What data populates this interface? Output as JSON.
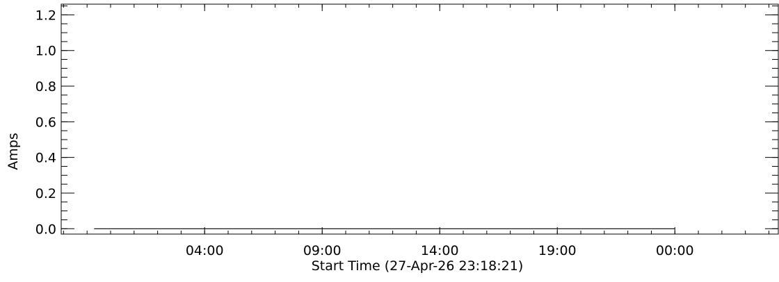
{
  "chart_data": {
    "type": "line",
    "title": "",
    "xlabel": "Start Time (27-Apr-26 23:18:21)",
    "ylabel": "Amps",
    "x_is_time": true,
    "x_ticks": [
      "04:00",
      "09:00",
      "14:00",
      "19:00",
      "00:00"
    ],
    "x_tick_hours_from_start": [
      4.7,
      9.7,
      14.7,
      19.7,
      24.7
    ],
    "xlim_hours_from_start": [
      -1.4,
      29.1
    ],
    "y_ticks": [
      "0.0",
      "0.2",
      "0.4",
      "0.6",
      "0.8",
      "1.0",
      "1.2"
    ],
    "y_tick_values": [
      0.0,
      0.2,
      0.4,
      0.6,
      0.8,
      1.0,
      1.2
    ],
    "ylim": [
      -0.03,
      1.26
    ],
    "grid": false,
    "series": [
      {
        "x_hours_from_start": [
          0.0,
          24.7
        ],
        "values": [
          0.0,
          0.0
        ]
      }
    ]
  }
}
